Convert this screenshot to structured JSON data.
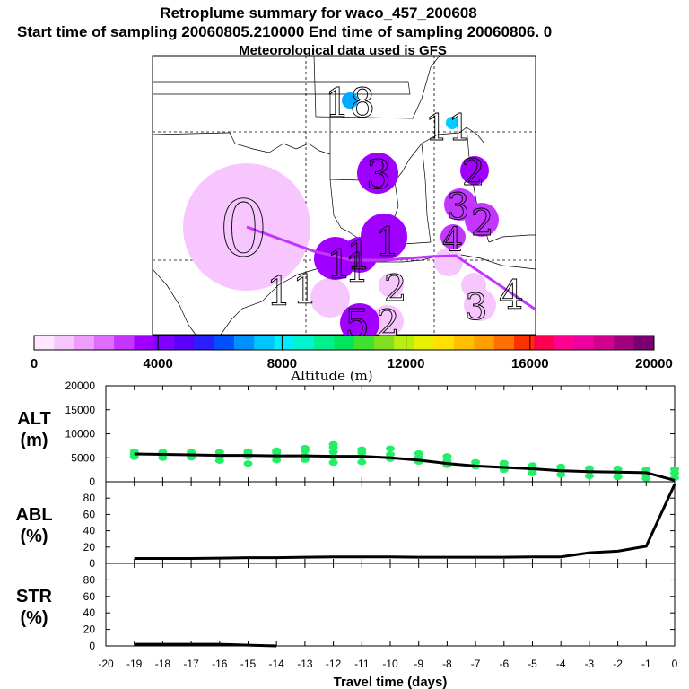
{
  "header": {
    "title": "Retroplume summary for waco_457_200608",
    "line2": "Start time of sampling 20060805.210000     End time of sampling 20060806.     0",
    "line3": "Meteorological data used is GFS"
  },
  "colorbar": {
    "ticks": [
      "0",
      "4000",
      "8000",
      "12000",
      "16000",
      "20000"
    ],
    "label": "Altitude (m)",
    "colors": [
      "#ffe6ff",
      "#f7c6ff",
      "#ee9dff",
      "#dd6cff",
      "#c336ff",
      "#a000ff",
      "#8000ff",
      "#5b00ff",
      "#2a20ff",
      "#0050ff",
      "#0090ff",
      "#00c6ff",
      "#00eeff",
      "#00f5cc",
      "#00f090",
      "#00e65a",
      "#40e030",
      "#80e020",
      "#b8ee10",
      "#e8f000",
      "#ffe000",
      "#ffc000",
      "#ffa000",
      "#ff7000",
      "#ff3000",
      "#ff0050",
      "#ff0090",
      "#ee00a0",
      "#d00090",
      "#a00080",
      "#780070"
    ]
  },
  "map": {
    "labels": [
      "18",
      "11",
      "3",
      "2",
      "3",
      "2",
      "0",
      "4",
      "1",
      "1",
      "1",
      "1",
      "1",
      "1",
      "2",
      "5",
      "2",
      "3",
      "4"
    ],
    "colors": {
      "light": "#f7c6ff",
      "mid": "#c336ff",
      "deep": "#a000ff",
      "cyan": "#00a8ff",
      "track": "#c336ff"
    }
  },
  "chart_data": [
    {
      "type": "line",
      "title": "ALT (m)",
      "ylabel_top": "ALT",
      "ylabel_bottom": "(m)",
      "ylim": [
        0,
        20000
      ],
      "yticks": [
        "20000",
        "15000",
        "10000",
        "5000",
        "0"
      ],
      "series": [
        {
          "name": "median altitude",
          "x": [
            -19,
            -18,
            -17,
            -16,
            -15,
            -14,
            -13,
            -12,
            -11,
            -10,
            -9,
            -8,
            -7,
            -6,
            -5,
            -4,
            -3,
            -2,
            -1,
            0
          ],
          "values": [
            5800,
            5700,
            5600,
            5500,
            5500,
            5400,
            5400,
            5300,
            5300,
            5000,
            4500,
            3800,
            3300,
            3000,
            2700,
            2300,
            2100,
            2000,
            1900,
            300
          ]
        }
      ],
      "scatter_color": "#22ee66",
      "scatter": [
        {
          "x": -19,
          "values": [
            5200,
            5800,
            6300,
            6000
          ]
        },
        {
          "x": -18,
          "values": [
            5000,
            5600,
            6200
          ]
        },
        {
          "x": -17,
          "values": [
            5100,
            5700,
            6200
          ]
        },
        {
          "x": -16,
          "values": [
            4400,
            5200,
            6200,
            5700
          ]
        },
        {
          "x": -15,
          "values": [
            3800,
            5300,
            6000,
            6300
          ]
        },
        {
          "x": -14,
          "values": [
            4500,
            5400,
            6100,
            6500
          ]
        },
        {
          "x": -13,
          "values": [
            4600,
            5400,
            6500,
            7000
          ]
        },
        {
          "x": -12,
          "values": [
            4000,
            5200,
            6200,
            7200,
            7800
          ]
        },
        {
          "x": -11,
          "values": [
            4100,
            5300,
            6100,
            6700
          ]
        },
        {
          "x": -10,
          "values": [
            4800,
            5700,
            6900
          ]
        },
        {
          "x": -9,
          "values": [
            4200,
            5100,
            5900
          ]
        },
        {
          "x": -8,
          "values": [
            3500,
            4400,
            5300
          ]
        },
        {
          "x": -7,
          "values": [
            3200,
            4100
          ]
        },
        {
          "x": -6,
          "values": [
            2500,
            3300,
            3900
          ]
        },
        {
          "x": -5,
          "values": [
            1800,
            2600,
            3400
          ]
        },
        {
          "x": -4,
          "values": [
            1500,
            2400,
            3100
          ]
        },
        {
          "x": -3,
          "values": [
            1200,
            2200,
            2800
          ]
        },
        {
          "x": -2,
          "values": [
            1000,
            2000,
            2700
          ]
        },
        {
          "x": -1,
          "values": [
            700,
            1500,
            2500
          ]
        },
        {
          "x": 0,
          "values": [
            800,
            1800,
            2600
          ]
        }
      ]
    },
    {
      "type": "line",
      "title": "ABL (%)",
      "ylabel_top": "ABL",
      "ylabel_bottom": "(%)",
      "ylim": [
        0,
        100
      ],
      "yticks": [
        "80",
        "60",
        "40",
        "20",
        "0"
      ],
      "series": [
        {
          "name": "ABL fraction",
          "x": [
            -19,
            -18,
            -17,
            -16,
            -15,
            -14,
            -13,
            -12,
            -11,
            -10,
            -9,
            -8,
            -7,
            -6,
            -5,
            -4,
            -3,
            -2,
            -1,
            0
          ],
          "values": [
            6,
            6,
            6,
            6.5,
            7,
            7,
            7.5,
            8,
            8,
            8,
            7.5,
            7.5,
            7.5,
            7.5,
            8,
            8,
            13,
            15,
            21,
            97
          ]
        }
      ]
    },
    {
      "type": "line",
      "title": "STR (%)",
      "ylabel_top": "STR",
      "ylabel_bottom": "(%)",
      "ylim": [
        0,
        100
      ],
      "yticks": [
        "80",
        "60",
        "40",
        "20",
        "0"
      ],
      "series": [
        {
          "name": "STR fraction",
          "x": [
            -19,
            -18,
            -17,
            -16,
            -15,
            -14
          ],
          "values": [
            2,
            2,
            2,
            2,
            1,
            0
          ]
        }
      ]
    }
  ],
  "xaxis": {
    "label": "Travel time (days)",
    "min": -20,
    "max": 0,
    "ticks": [
      "-20",
      "-19",
      "-18",
      "-17",
      "-16",
      "-15",
      "-14",
      "-13",
      "-12",
      "-11",
      "-10",
      "-9",
      "-8",
      "-7",
      "-6",
      "-5",
      "-4",
      "-3",
      "-2",
      "-1",
      "0"
    ]
  }
}
